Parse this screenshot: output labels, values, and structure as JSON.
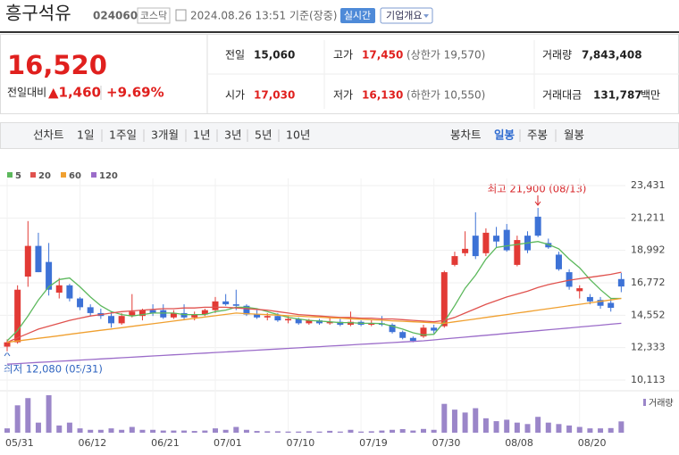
{
  "header": {
    "name": "흥구석유",
    "code": "024060",
    "market": "코스닥",
    "timestamp": "2024.08.26 13:51 기준(장중)",
    "realtime": "실시간",
    "company_info": "기업개요"
  },
  "quote": {
    "price": "16,520",
    "change_label": "전일대비",
    "change": "▲1,460",
    "change_rate": "+9.69%",
    "fields": [
      {
        "label": "전일",
        "value": "15,060"
      },
      {
        "label": "고가",
        "value": "17,450",
        "note": "(상한가 19,570)"
      },
      {
        "label": "거래량",
        "value": "7,843,408"
      },
      {
        "label": "시가",
        "value": "17,030"
      },
      {
        "label": "저가",
        "value": "16,130",
        "note": "(하한가 10,550)"
      },
      {
        "label": "거래대금",
        "value": "131,787",
        "unit": "백만"
      }
    ]
  },
  "tabs": {
    "line_chart": "선차트",
    "periods": [
      "1일",
      "1주일",
      "3개월",
      "1년",
      "3년",
      "5년",
      "10년"
    ],
    "candle_chart": "봉차트",
    "candle_periods": [
      "일봉",
      "주봉",
      "월봉"
    ]
  },
  "chart_data": {
    "type": "candlestick",
    "categories": [
      "05/31",
      null,
      null,
      null,
      null,
      null,
      null,
      "06/12",
      null,
      null,
      null,
      null,
      null,
      null,
      "06/21",
      null,
      null,
      null,
      null,
      null,
      "07/01",
      null,
      null,
      null,
      null,
      null,
      null,
      "07/10",
      null,
      null,
      null,
      null,
      null,
      null,
      "07/19",
      null,
      null,
      null,
      null,
      null,
      null,
      "07/30",
      null,
      null,
      null,
      null,
      null,
      null,
      "08/08",
      null,
      null,
      null,
      null,
      null,
      null,
      "08/20",
      null,
      null,
      null,
      null
    ],
    "open": [
      12400,
      12700,
      17200,
      19300,
      18200,
      16100,
      16600,
      15700,
      15100,
      14700,
      14500,
      14000,
      14500,
      14500,
      14900,
      14900,
      14400,
      14700,
      14400,
      14600,
      14900,
      15500,
      15300,
      15200,
      14600,
      14400,
      14500,
      14200,
      14300,
      14000,
      14200,
      14000,
      14100,
      13900,
      14100,
      13900,
      14000,
      13900,
      13400,
      13000,
      13100,
      13700,
      13800,
      18000,
      18800,
      20000,
      18800,
      20000,
      20400,
      18000,
      20000,
      21300,
      19500,
      18700,
      17500,
      16200,
      15800,
      15600,
      15400,
      17030
    ],
    "high": [
      12900,
      16600,
      21000,
      20200,
      19500,
      17100,
      16700,
      15800,
      15300,
      15000,
      14800,
      14700,
      16000,
      15000,
      15300,
      15300,
      14900,
      15300,
      14800,
      15000,
      15800,
      16000,
      16300,
      15300,
      14900,
      14700,
      14700,
      14500,
      14400,
      14300,
      14300,
      14400,
      14300,
      14800,
      14200,
      14200,
      14500,
      14000,
      13500,
      13100,
      13900,
      13900,
      17600,
      18900,
      20300,
      21600,
      20500,
      20600,
      20800,
      20000,
      20300,
      21900,
      19800,
      18900,
      17700,
      16600,
      16000,
      15800,
      15700,
      17450
    ],
    "low": [
      12080,
      12600,
      16500,
      17500,
      15900,
      15700,
      15500,
      14900,
      14500,
      14300,
      13700,
      13900,
      14400,
      14200,
      14500,
      14300,
      14300,
      14200,
      14200,
      14500,
      14700,
      15200,
      14900,
      14500,
      14300,
      14200,
      14100,
      14000,
      13900,
      13900,
      13900,
      13900,
      13800,
      13800,
      13800,
      13800,
      13800,
      13300,
      12900,
      12700,
      13000,
      13300,
      13700,
      17900,
      18600,
      18400,
      18600,
      19200,
      18900,
      17900,
      18800,
      19900,
      19100,
      17600,
      16300,
      15700,
      15300,
      15000,
      14800,
      16130
    ],
    "close": [
      12700,
      16300,
      19300,
      17500,
      16300,
      16600,
      15700,
      15100,
      14700,
      14500,
      14000,
      14500,
      14800,
      14900,
      14700,
      14400,
      14700,
      14400,
      14600,
      14900,
      15500,
      15300,
      15200,
      14600,
      14400,
      14500,
      14200,
      14300,
      14000,
      14200,
      14000,
      14100,
      13900,
      14100,
      13900,
      14000,
      13900,
      13400,
      13000,
      12800,
      13700,
      13500,
      17500,
      18600,
      19100,
      18600,
      20200,
      19600,
      19000,
      19700,
      19000,
      20000,
      19200,
      17700,
      16500,
      16400,
      15500,
      15200,
      15060,
      16520
    ],
    "candle_colors": {
      "up": "#e23a35",
      "down": "#3d72d6"
    },
    "series": [
      {
        "name": "5",
        "color": "#5cb85c",
        "values": [
          12800,
          13500,
          14500,
          15600,
          16500,
          17000,
          17100,
          16500,
          15800,
          15200,
          14800,
          14600,
          14500,
          14600,
          14700,
          14700,
          14700,
          14600,
          14600,
          14600,
          14800,
          14900,
          15100,
          15100,
          15000,
          14800,
          14600,
          14400,
          14300,
          14200,
          14150,
          14100,
          14050,
          14050,
          14000,
          14000,
          13980,
          13800,
          13600,
          13350,
          13200,
          13250,
          14100,
          15200,
          16400,
          17300,
          18400,
          19200,
          19300,
          19400,
          19500,
          19600,
          19400,
          19100,
          18400,
          17800,
          17000,
          16300,
          15700,
          15700
        ]
      },
      {
        "name": "20",
        "color": "#e0524e",
        "values": [
          12700,
          13000,
          13300,
          13600,
          13800,
          14000,
          14200,
          14350,
          14500,
          14600,
          14700,
          14800,
          14850,
          14900,
          14950,
          15000,
          15000,
          15050,
          15050,
          15100,
          15100,
          15100,
          15050,
          15000,
          14950,
          14900,
          14800,
          14700,
          14600,
          14550,
          14500,
          14450,
          14400,
          14400,
          14350,
          14350,
          14300,
          14300,
          14250,
          14200,
          14150,
          14100,
          14200,
          14400,
          14700,
          15000,
          15300,
          15550,
          15800,
          16000,
          16200,
          16450,
          16650,
          16800,
          16950,
          17050,
          17150,
          17250,
          17350,
          17500
        ]
      },
      {
        "name": "60",
        "color": "#f0a030",
        "values": [
          12700,
          12790,
          12880,
          12970,
          13060,
          13150,
          13250,
          13340,
          13430,
          13520,
          13610,
          13700,
          13790,
          13880,
          13970,
          14060,
          14150,
          14250,
          14340,
          14430,
          14520,
          14610,
          14700,
          14660,
          14630,
          14590,
          14560,
          14520,
          14490,
          14450,
          14420,
          14380,
          14350,
          14310,
          14280,
          14240,
          14210,
          14170,
          14140,
          14100,
          14070,
          14030,
          14000,
          14100,
          14200,
          14300,
          14400,
          14500,
          14600,
          14700,
          14800,
          14900,
          15000,
          15100,
          15200,
          15300,
          15400,
          15500,
          15600,
          15700
        ]
      },
      {
        "name": "120",
        "color": "#9b6cc9",
        "values": [
          11200,
          11240,
          11280,
          11320,
          11360,
          11400,
          11440,
          11480,
          11520,
          11560,
          11600,
          11640,
          11680,
          11720,
          11760,
          11800,
          11840,
          11880,
          11920,
          11960,
          12000,
          12040,
          12080,
          12120,
          12160,
          12200,
          12240,
          12280,
          12320,
          12360,
          12400,
          12440,
          12480,
          12520,
          12560,
          12600,
          12640,
          12680,
          12720,
          12760,
          12800,
          12860,
          12930,
          12990,
          13050,
          13120,
          13180,
          13240,
          13310,
          13370,
          13430,
          13490,
          13560,
          13620,
          13680,
          13750,
          13810,
          13870,
          13940,
          14000
        ]
      }
    ],
    "volume": {
      "name": "거래량",
      "color": "#9b86c9",
      "values": [
        3000000,
        19000000,
        24000000,
        7000000,
        26000000,
        5000000,
        7000000,
        3000000,
        2000000,
        2000000,
        3000000,
        2000000,
        4000000,
        2000000,
        2000000,
        1500000,
        1500000,
        1500000,
        1200000,
        1500000,
        3000000,
        2000000,
        4000000,
        2000000,
        1200000,
        1000000,
        1000000,
        800000,
        800000,
        1000000,
        800000,
        1300000,
        800000,
        2000000,
        800000,
        1000000,
        1500000,
        2000000,
        2500000,
        1500000,
        2600000,
        2000000,
        20000000,
        16000000,
        14000000,
        17000000,
        10000000,
        8000000,
        9000000,
        7000000,
        6000000,
        11000000,
        7000000,
        6000000,
        5000000,
        4000000,
        3000000,
        3000000,
        3200000,
        7843408
      ]
    },
    "ylim": [
      10113,
      23431
    ],
    "yticks": [
      {
        "value": 10113,
        "label": "10,113"
      },
      {
        "value": 12333,
        "label": "12,333"
      },
      {
        "value": 14552,
        "label": "14,552"
      },
      {
        "value": 16772,
        "label": "16,772"
      },
      {
        "value": 18992,
        "label": "18,992"
      },
      {
        "value": 21211,
        "label": "21,211"
      },
      {
        "value": 23431,
        "label": "23,431"
      }
    ],
    "grid": true,
    "annotations": {
      "high": "최고 21,900 (08/13)",
      "low": "최저 12,080 (05/31)"
    }
  }
}
